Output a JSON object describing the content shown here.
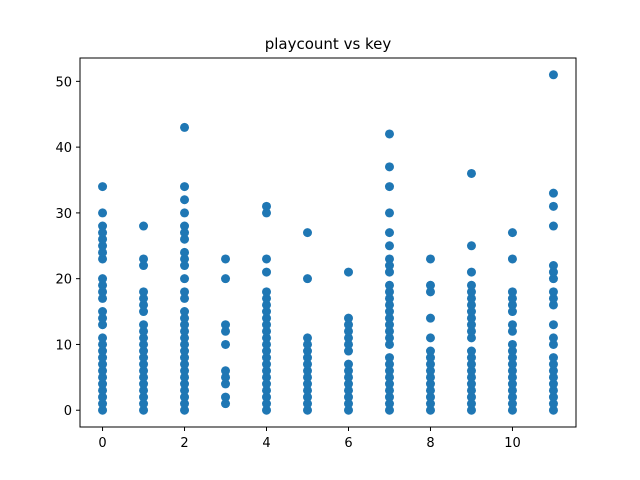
{
  "chart_data": {
    "type": "scatter",
    "title": "playcount vs key",
    "xlabel": "",
    "ylabel": "",
    "xlim": [
      -0.55,
      11.55
    ],
    "ylim": [
      -2.55,
      53.55
    ],
    "x_ticks": [
      0,
      2,
      4,
      6,
      8,
      10
    ],
    "y_ticks": [
      0,
      10,
      20,
      30,
      40,
      50
    ],
    "grid": false,
    "point_color": "#1f77b4",
    "points": [
      {
        "key": 0,
        "playcounts": [
          0,
          1,
          2,
          3,
          4,
          5,
          6,
          7,
          8,
          9,
          10,
          11,
          13,
          14,
          15,
          17,
          18,
          19,
          20,
          23,
          24,
          25,
          26,
          27,
          28,
          30,
          34
        ]
      },
      {
        "key": 1,
        "playcounts": [
          0,
          1,
          2,
          3,
          4,
          5,
          6,
          7,
          8,
          9,
          10,
          11,
          12,
          13,
          15,
          16,
          17,
          18,
          22,
          23,
          28
        ]
      },
      {
        "key": 2,
        "playcounts": [
          0,
          1,
          2,
          3,
          4,
          5,
          6,
          7,
          8,
          9,
          10,
          11,
          12,
          13,
          14,
          15,
          17,
          18,
          20,
          22,
          23,
          24,
          26,
          27,
          28,
          30,
          32,
          34,
          43
        ]
      },
      {
        "key": 3,
        "playcounts": [
          1,
          2,
          4,
          5,
          6,
          10,
          12,
          13,
          20,
          23
        ]
      },
      {
        "key": 4,
        "playcounts": [
          0,
          1,
          2,
          3,
          4,
          5,
          6,
          7,
          8,
          9,
          10,
          11,
          12,
          13,
          14,
          15,
          16,
          17,
          18,
          21,
          23,
          30,
          31
        ]
      },
      {
        "key": 5,
        "playcounts": [
          0,
          1,
          2,
          3,
          4,
          5,
          6,
          7,
          8,
          9,
          10,
          11,
          20,
          27
        ]
      },
      {
        "key": 6,
        "playcounts": [
          0,
          1,
          2,
          3,
          4,
          5,
          6,
          7,
          9,
          10,
          11,
          12,
          13,
          14,
          21
        ]
      },
      {
        "key": 7,
        "playcounts": [
          0,
          1,
          2,
          3,
          4,
          5,
          6,
          7,
          8,
          10,
          11,
          12,
          13,
          14,
          15,
          16,
          17,
          18,
          19,
          21,
          22,
          23,
          25,
          27,
          30,
          34,
          37,
          42
        ]
      },
      {
        "key": 8,
        "playcounts": [
          0,
          1,
          2,
          3,
          4,
          5,
          6,
          7,
          8,
          9,
          11,
          14,
          18,
          19,
          23
        ]
      },
      {
        "key": 9,
        "playcounts": [
          0,
          1,
          2,
          3,
          4,
          5,
          6,
          7,
          8,
          9,
          11,
          12,
          13,
          14,
          15,
          16,
          17,
          18,
          19,
          21,
          25,
          36
        ]
      },
      {
        "key": 10,
        "playcounts": [
          0,
          1,
          2,
          3,
          4,
          5,
          6,
          7,
          8,
          9,
          10,
          12,
          13,
          15,
          16,
          17,
          18,
          23,
          27
        ]
      },
      {
        "key": 11,
        "playcounts": [
          0,
          1,
          2,
          3,
          4,
          5,
          6,
          7,
          8,
          10,
          11,
          13,
          16,
          17,
          18,
          20,
          21,
          22,
          28,
          31,
          33,
          51
        ]
      }
    ]
  }
}
